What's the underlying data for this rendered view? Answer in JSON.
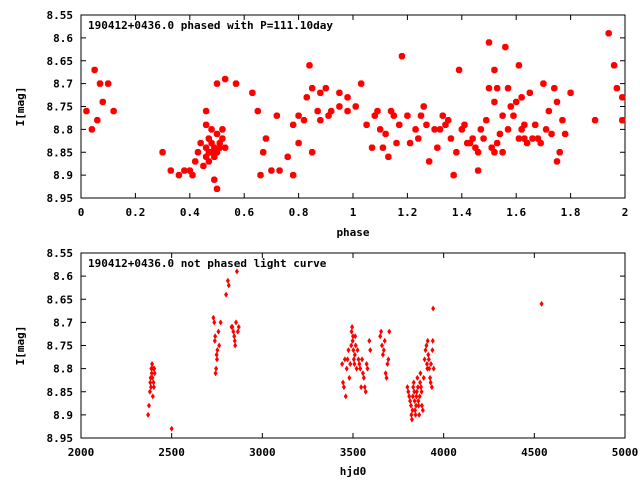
{
  "chart_data": [
    {
      "type": "scatter",
      "title": "190412+0436.0 phased with P=111.10day",
      "xlabel": "phase",
      "ylabel": "I[mag]",
      "xlim": [
        0,
        2
      ],
      "ylim": [
        8.55,
        8.95
      ],
      "y_inverted": true,
      "x_ticks": [
        "0",
        "0.2",
        "0.4",
        "0.6",
        "0.8",
        "1",
        "1.2",
        "1.4",
        "1.6",
        "1.8",
        "2"
      ],
      "y_ticks": [
        "8.55",
        "8.6",
        "8.65",
        "8.7",
        "8.75",
        "8.8",
        "8.85",
        "8.9",
        "8.95"
      ],
      "marker_color": "#ff0000",
      "marker": "filled-circle-large",
      "points": [
        [
          0.02,
          8.76
        ],
        [
          0.04,
          8.8
        ],
        [
          0.05,
          8.67
        ],
        [
          0.06,
          8.78
        ],
        [
          0.07,
          8.7
        ],
        [
          0.08,
          8.74
        ],
        [
          0.1,
          8.7
        ],
        [
          0.12,
          8.76
        ],
        [
          0.3,
          8.85
        ],
        [
          0.33,
          8.89
        ],
        [
          0.36,
          8.9
        ],
        [
          0.38,
          8.89
        ],
        [
          0.4,
          8.89
        ],
        [
          0.41,
          8.9
        ],
        [
          0.42,
          8.87
        ],
        [
          0.43,
          8.85
        ],
        [
          0.44,
          8.83
        ],
        [
          0.45,
          8.88
        ],
        [
          0.46,
          8.86
        ],
        [
          0.46,
          8.84
        ],
        [
          0.47,
          8.85
        ],
        [
          0.47,
          8.87
        ],
        [
          0.48,
          8.83
        ],
        [
          0.48,
          8.85
        ],
        [
          0.49,
          8.84
        ],
        [
          0.49,
          8.86
        ],
        [
          0.5,
          8.85
        ],
        [
          0.5,
          8.81
        ],
        [
          0.51,
          8.83
        ],
        [
          0.51,
          8.84
        ],
        [
          0.52,
          8.82
        ],
        [
          0.49,
          8.91
        ],
        [
          0.5,
          8.93
        ],
        [
          0.52,
          8.8
        ],
        [
          0.53,
          8.84
        ],
        [
          0.5,
          8.7
        ],
        [
          0.53,
          8.69
        ],
        [
          0.57,
          8.7
        ],
        [
          0.46,
          8.76
        ],
        [
          0.46,
          8.79
        ],
        [
          0.47,
          8.82
        ],
        [
          0.48,
          8.8
        ],
        [
          0.63,
          8.72
        ],
        [
          0.65,
          8.76
        ],
        [
          0.66,
          8.9
        ],
        [
          0.67,
          8.85
        ],
        [
          0.68,
          8.82
        ],
        [
          0.7,
          8.89
        ],
        [
          0.72,
          8.77
        ],
        [
          0.73,
          8.89
        ],
        [
          0.76,
          8.86
        ],
        [
          0.78,
          8.9
        ],
        [
          0.78,
          8.79
        ],
        [
          0.8,
          8.77
        ],
        [
          0.8,
          8.83
        ],
        [
          0.82,
          8.78
        ],
        [
          0.83,
          8.73
        ],
        [
          0.84,
          8.66
        ],
        [
          0.85,
          8.85
        ],
        [
          0.85,
          8.71
        ],
        [
          0.87,
          8.76
        ],
        [
          0.88,
          8.78
        ],
        [
          0.88,
          8.72
        ],
        [
          0.9,
          8.71
        ],
        [
          0.91,
          8.77
        ],
        [
          0.92,
          8.76
        ],
        [
          0.95,
          8.75
        ],
        [
          0.95,
          8.72
        ],
        [
          0.98,
          8.73
        ],
        [
          0.98,
          8.76
        ],
        [
          1.01,
          8.75
        ],
        [
          1.03,
          8.7
        ],
        [
          1.05,
          8.79
        ],
        [
          1.07,
          8.84
        ],
        [
          1.08,
          8.77
        ],
        [
          1.09,
          8.76
        ],
        [
          1.1,
          8.8
        ],
        [
          1.11,
          8.84
        ],
        [
          1.12,
          8.81
        ],
        [
          1.13,
          8.86
        ],
        [
          1.14,
          8.76
        ],
        [
          1.15,
          8.77
        ],
        [
          1.16,
          8.83
        ],
        [
          1.17,
          8.79
        ],
        [
          1.18,
          8.64
        ],
        [
          1.2,
          8.77
        ],
        [
          1.21,
          8.83
        ],
        [
          1.23,
          8.8
        ],
        [
          1.24,
          8.82
        ],
        [
          1.25,
          8.77
        ],
        [
          1.26,
          8.75
        ],
        [
          1.27,
          8.79
        ],
        [
          1.28,
          8.87
        ],
        [
          1.3,
          8.8
        ],
        [
          1.31,
          8.84
        ],
        [
          1.32,
          8.8
        ],
        [
          1.33,
          8.77
        ],
        [
          1.34,
          8.79
        ],
        [
          1.35,
          8.78
        ],
        [
          1.36,
          8.82
        ],
        [
          1.37,
          8.9
        ],
        [
          1.38,
          8.85
        ],
        [
          1.39,
          8.67
        ],
        [
          1.4,
          8.8
        ],
        [
          1.41,
          8.79
        ],
        [
          1.42,
          8.83
        ],
        [
          1.43,
          8.83
        ],
        [
          1.44,
          8.82
        ],
        [
          1.45,
          8.84
        ],
        [
          1.46,
          8.89
        ],
        [
          1.47,
          8.8
        ],
        [
          1.48,
          8.82
        ],
        [
          1.49,
          8.78
        ],
        [
          1.5,
          8.61
        ],
        [
          1.5,
          8.71
        ],
        [
          1.51,
          8.84
        ],
        [
          1.52,
          8.67
        ],
        [
          1.52,
          8.74
        ],
        [
          1.53,
          8.71
        ],
        [
          1.53,
          8.83
        ],
        [
          1.54,
          8.81
        ],
        [
          1.55,
          8.85
        ],
        [
          1.55,
          8.77
        ],
        [
          1.56,
          8.62
        ],
        [
          1.57,
          8.8
        ],
        [
          1.57,
          8.71
        ],
        [
          1.58,
          8.75
        ],
        [
          1.59,
          8.77
        ],
        [
          1.6,
          8.74
        ],
        [
          1.61,
          8.82
        ],
        [
          1.61,
          8.66
        ],
        [
          1.62,
          8.73
        ],
        [
          1.62,
          8.8
        ],
        [
          1.63,
          8.79
        ],
        [
          1.63,
          8.82
        ],
        [
          1.64,
          8.83
        ],
        [
          1.65,
          8.72
        ],
        [
          1.66,
          8.82
        ],
        [
          1.67,
          8.79
        ],
        [
          1.68,
          8.82
        ],
        [
          1.69,
          8.83
        ],
        [
          1.7,
          8.7
        ],
        [
          1.71,
          8.8
        ],
        [
          1.72,
          8.76
        ],
        [
          1.73,
          8.81
        ],
        [
          1.74,
          8.71
        ],
        [
          1.75,
          8.74
        ],
        [
          1.75,
          8.87
        ],
        [
          1.76,
          8.85
        ],
        [
          1.77,
          8.78
        ],
        [
          1.78,
          8.81
        ],
        [
          1.8,
          8.72
        ],
        [
          1.89,
          8.78
        ],
        [
          1.94,
          8.59
        ],
        [
          1.96,
          8.66
        ],
        [
          1.97,
          8.71
        ],
        [
          1.99,
          8.73
        ],
        [
          1.99,
          8.78
        ],
        [
          1.46,
          8.85
        ],
        [
          1.52,
          8.85
        ]
      ]
    },
    {
      "type": "scatter",
      "title": "190412+0436.0 not phased light curve",
      "xlabel": "hjd0",
      "ylabel": "I[mag]",
      "xlim": [
        2000,
        5000
      ],
      "ylim": [
        8.55,
        8.95
      ],
      "y_inverted": true,
      "x_ticks": [
        "2000",
        "2500",
        "3000",
        "3500",
        "4000",
        "4500",
        "5000"
      ],
      "y_ticks": [
        "8.55",
        "8.6",
        "8.65",
        "8.7",
        "8.75",
        "8.8",
        "8.85",
        "8.9",
        "8.95"
      ],
      "marker_color": "#ff0000",
      "marker": "diamond-small",
      "points": [
        [
          2370,
          8.9
        ],
        [
          2375,
          8.88
        ],
        [
          2380,
          8.85
        ],
        [
          2382,
          8.83
        ],
        [
          2384,
          8.82
        ],
        [
          2386,
          8.84
        ],
        [
          2388,
          8.8
        ],
        [
          2390,
          8.81
        ],
        [
          2392,
          8.79
        ],
        [
          2394,
          8.82
        ],
        [
          2396,
          8.86
        ],
        [
          2398,
          8.8
        ],
        [
          2400,
          8.83
        ],
        [
          2402,
          8.84
        ],
        [
          2404,
          8.8
        ],
        [
          2406,
          8.81
        ],
        [
          2500,
          8.93
        ],
        [
          2730,
          8.69
        ],
        [
          2735,
          8.7
        ],
        [
          2738,
          8.74
        ],
        [
          2740,
          8.73
        ],
        [
          2742,
          8.81
        ],
        [
          2745,
          8.8
        ],
        [
          2748,
          8.77
        ],
        [
          2750,
          8.78
        ],
        [
          2752,
          8.76
        ],
        [
          2758,
          8.72
        ],
        [
          2762,
          8.75
        ],
        [
          2770,
          8.7
        ],
        [
          2800,
          8.64
        ],
        [
          2810,
          8.61
        ],
        [
          2815,
          8.62
        ],
        [
          2830,
          8.71
        ],
        [
          2835,
          8.71
        ],
        [
          2840,
          8.72
        ],
        [
          2845,
          8.73
        ],
        [
          2848,
          8.74
        ],
        [
          2850,
          8.75
        ],
        [
          2855,
          8.7
        ],
        [
          2860,
          8.59
        ],
        [
          2865,
          8.72
        ],
        [
          2870,
          8.71
        ],
        [
          3440,
          8.79
        ],
        [
          3445,
          8.83
        ],
        [
          3450,
          8.84
        ],
        [
          3455,
          8.78
        ],
        [
          3460,
          8.86
        ],
        [
          3465,
          8.8
        ],
        [
          3470,
          8.78
        ],
        [
          3475,
          8.76
        ],
        [
          3480,
          8.82
        ],
        [
          3485,
          8.79
        ],
        [
          3490,
          8.75
        ],
        [
          3492,
          8.72
        ],
        [
          3495,
          8.71
        ],
        [
          3498,
          8.74
        ],
        [
          3500,
          8.73
        ],
        [
          3502,
          8.76
        ],
        [
          3505,
          8.78
        ],
        [
          3508,
          8.79
        ],
        [
          3510,
          8.77
        ],
        [
          3512,
          8.73
        ],
        [
          3515,
          8.75
        ],
        [
          3520,
          8.8
        ],
        [
          3525,
          8.76
        ],
        [
          3530,
          8.78
        ],
        [
          3535,
          8.79
        ],
        [
          3540,
          8.8
        ],
        [
          3545,
          8.84
        ],
        [
          3550,
          8.78
        ],
        [
          3555,
          8.81
        ],
        [
          3560,
          8.82
        ],
        [
          3565,
          8.84
        ],
        [
          3570,
          8.85
        ],
        [
          3575,
          8.79
        ],
        [
          3580,
          8.8
        ],
        [
          3590,
          8.74
        ],
        [
          3595,
          8.76
        ],
        [
          3650,
          8.73
        ],
        [
          3655,
          8.72
        ],
        [
          3660,
          8.75
        ],
        [
          3665,
          8.77
        ],
        [
          3670,
          8.76
        ],
        [
          3675,
          8.74
        ],
        [
          3680,
          8.81
        ],
        [
          3685,
          8.82
        ],
        [
          3690,
          8.79
        ],
        [
          3695,
          8.78
        ],
        [
          3700,
          8.72
        ],
        [
          3800,
          8.84
        ],
        [
          3805,
          8.85
        ],
        [
          3810,
          8.86
        ],
        [
          3815,
          8.87
        ],
        [
          3820,
          8.88
        ],
        [
          3822,
          8.9
        ],
        [
          3825,
          8.91
        ],
        [
          3828,
          8.89
        ],
        [
          3830,
          8.86
        ],
        [
          3832,
          8.84
        ],
        [
          3835,
          8.83
        ],
        [
          3838,
          8.85
        ],
        [
          3840,
          8.87
        ],
        [
          3842,
          8.89
        ],
        [
          3845,
          8.9
        ],
        [
          3848,
          8.88
        ],
        [
          3850,
          8.86
        ],
        [
          3852,
          8.85
        ],
        [
          3855,
          8.82
        ],
        [
          3858,
          8.84
        ],
        [
          3860,
          8.87
        ],
        [
          3862,
          8.88
        ],
        [
          3865,
          8.9
        ],
        [
          3868,
          8.86
        ],
        [
          3870,
          8.83
        ],
        [
          3872,
          8.81
        ],
        [
          3875,
          8.84
        ],
        [
          3878,
          8.85
        ],
        [
          3880,
          8.88
        ],
        [
          3885,
          8.89
        ],
        [
          3890,
          8.82
        ],
        [
          3895,
          8.78
        ],
        [
          3900,
          8.76
        ],
        [
          3905,
          8.75
        ],
        [
          3908,
          8.79
        ],
        [
          3910,
          8.8
        ],
        [
          3912,
          8.74
        ],
        [
          3915,
          8.77
        ],
        [
          3918,
          8.78
        ],
        [
          3920,
          8.8
        ],
        [
          3925,
          8.82
        ],
        [
          3928,
          8.83
        ],
        [
          3930,
          8.79
        ],
        [
          3935,
          8.84
        ],
        [
          3938,
          8.76
        ],
        [
          3940,
          8.74
        ],
        [
          3942,
          8.67
        ],
        [
          3945,
          8.8
        ],
        [
          4540,
          8.66
        ]
      ]
    }
  ]
}
